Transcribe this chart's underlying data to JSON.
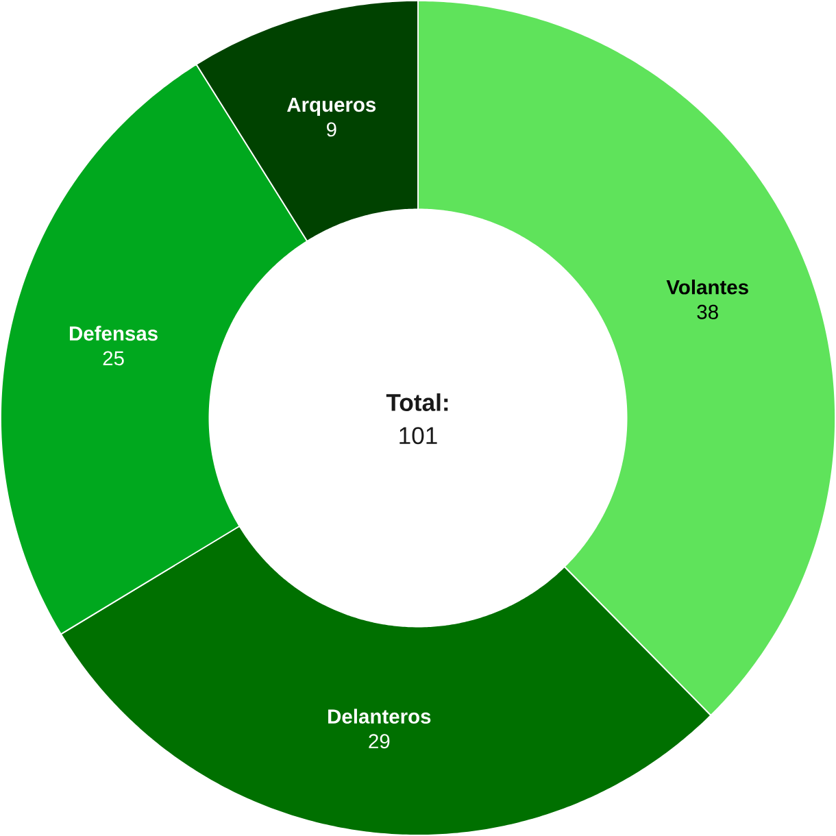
{
  "chart_data": {
    "type": "donut",
    "categories": [
      "Volantes",
      "Delanteros",
      "Defensas",
      "Arqueros"
    ],
    "values": [
      38,
      29,
      25,
      9
    ],
    "colors": [
      "#5fe35b",
      "#007000",
      "#00a81e",
      "#004200"
    ],
    "data_labels": true,
    "annotations": [
      "Total:",
      "101"
    ]
  }
}
